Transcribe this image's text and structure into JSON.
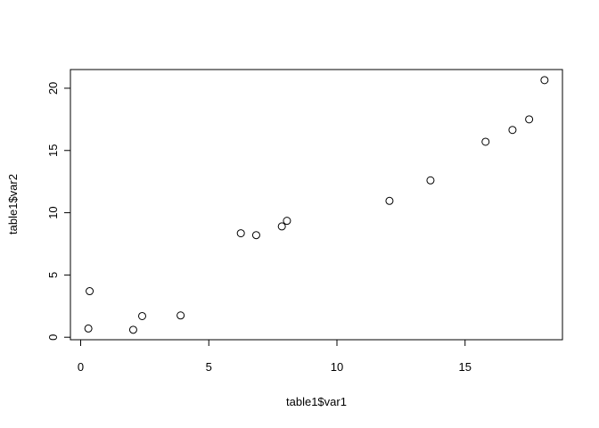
{
  "chart_data": {
    "type": "scatter",
    "title": "",
    "xlabel": "table1$var1",
    "ylabel": "table1$var2",
    "xlim": [
      -0.4,
      18.8
    ],
    "ylim": [
      -0.2,
      21.5
    ],
    "x_ticks": [
      0,
      5,
      10,
      15
    ],
    "y_ticks": [
      0,
      5,
      10,
      15,
      20
    ],
    "grid": false,
    "legend": "none",
    "marker": "open-circle",
    "series": [
      {
        "points": [
          {
            "x": 0.3,
            "y": 0.7
          },
          {
            "x": 0.35,
            "y": 3.7
          },
          {
            "x": 2.05,
            "y": 0.6
          },
          {
            "x": 2.4,
            "y": 1.7
          },
          {
            "x": 3.9,
            "y": 1.75
          },
          {
            "x": 6.25,
            "y": 8.35
          },
          {
            "x": 6.85,
            "y": 8.2
          },
          {
            "x": 7.85,
            "y": 8.9
          },
          {
            "x": 8.05,
            "y": 9.35
          },
          {
            "x": 12.05,
            "y": 10.95
          },
          {
            "x": 13.65,
            "y": 12.6
          },
          {
            "x": 15.8,
            "y": 15.7
          },
          {
            "x": 16.85,
            "y": 16.65
          },
          {
            "x": 17.5,
            "y": 17.5
          },
          {
            "x": 18.1,
            "y": 20.65
          }
        ]
      }
    ]
  }
}
